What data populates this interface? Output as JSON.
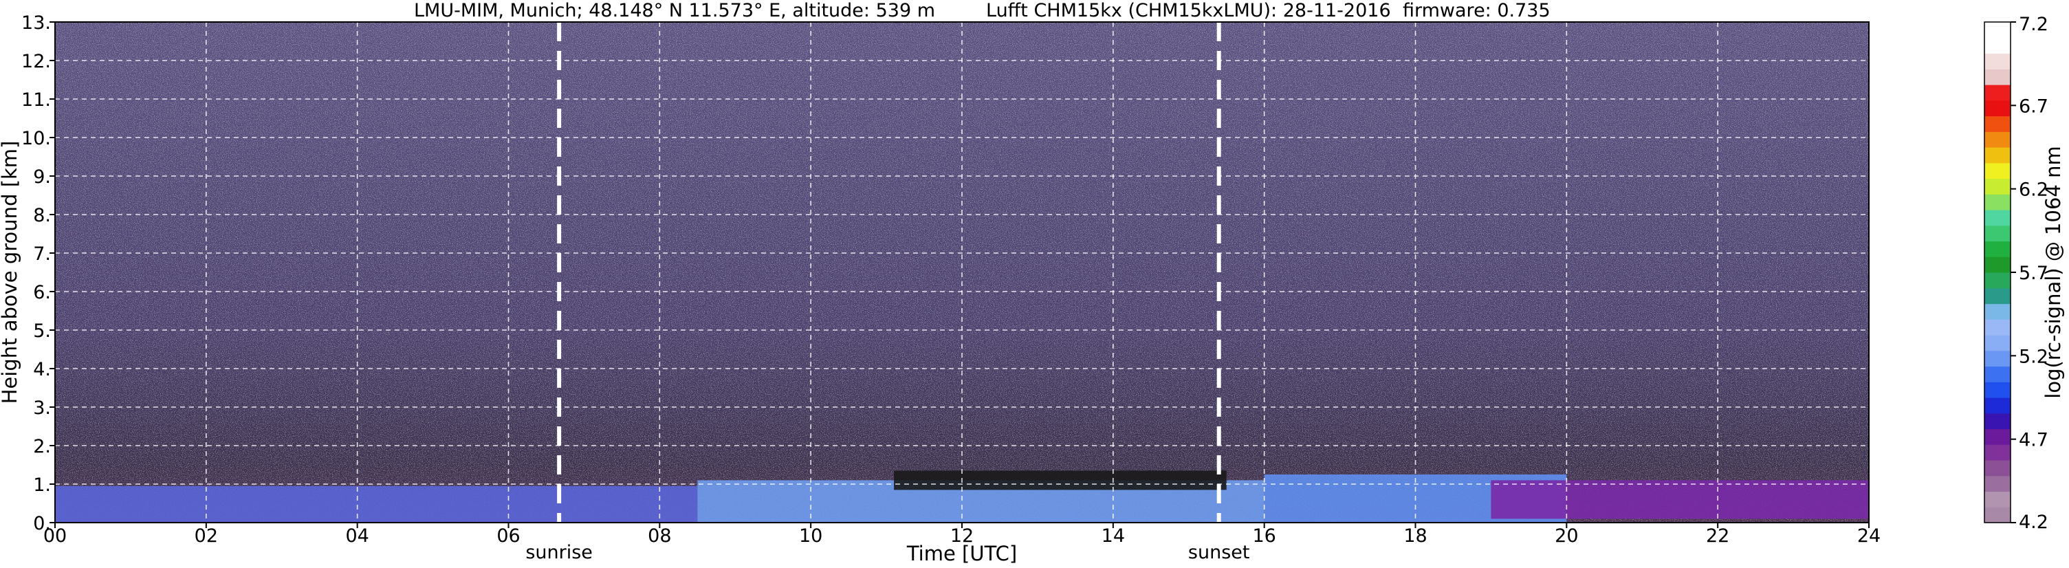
{
  "chart_data": {
    "type": "heatmap",
    "title": {
      "location": "LMU-MIM, Munich; 48.148° N 11.573° E, altitude: 539 m",
      "instrument": "Lufft CHM15kx (CHM15kxLMU): 28-11-2016",
      "firmware": "firmware: 0.735"
    },
    "xlabel": "Time [UTC]",
    "ylabel": "Height above ground [km]",
    "xlim": [
      0,
      24
    ],
    "ylim": [
      0,
      13
    ],
    "x_ticks": [
      {
        "value": 0,
        "label": "00"
      },
      {
        "value": 2,
        "label": "02"
      },
      {
        "value": 4,
        "label": "04"
      },
      {
        "value": 6,
        "label": "06"
      },
      {
        "value": 8,
        "label": "08"
      },
      {
        "value": 10,
        "label": "10"
      },
      {
        "value": 12,
        "label": "12"
      },
      {
        "value": 14,
        "label": "14"
      },
      {
        "value": 16,
        "label": "16"
      },
      {
        "value": 18,
        "label": "18"
      },
      {
        "value": 20,
        "label": "20"
      },
      {
        "value": 22,
        "label": "22"
      },
      {
        "value": 24,
        "label": "24"
      }
    ],
    "y_ticks": [
      {
        "value": 0,
        "label": "0."
      },
      {
        "value": 1,
        "label": "1."
      },
      {
        "value": 2,
        "label": "2."
      },
      {
        "value": 3,
        "label": "3."
      },
      {
        "value": 4,
        "label": "4."
      },
      {
        "value": 5,
        "label": "5."
      },
      {
        "value": 6,
        "label": "6."
      },
      {
        "value": 7,
        "label": "7."
      },
      {
        "value": 8,
        "label": "8."
      },
      {
        "value": 9,
        "label": "9."
      },
      {
        "value": 10,
        "label": "10."
      },
      {
        "value": 11,
        "label": "11."
      },
      {
        "value": 12,
        "label": "12."
      },
      {
        "value": 13,
        "label": "13."
      }
    ],
    "grid": true,
    "events": [
      {
        "name": "sunrise",
        "time": 6.67
      },
      {
        "name": "sunset",
        "time": 15.4
      }
    ],
    "regions": [
      {
        "name": "aerosol-layer-morning",
        "t0": 0,
        "t1": 8.5,
        "h0": 0,
        "h1": 0.95,
        "color": "#5a66d8"
      },
      {
        "name": "aerosol-layer-afternoon",
        "t0": 8.5,
        "t1": 16,
        "h0": 0,
        "h1": 1.1,
        "color": "#6f9df0"
      },
      {
        "name": "boundary-layer-evening",
        "t0": 16,
        "t1": 20,
        "h0": 0,
        "h1": 1.25,
        "color": "#5f8ff0"
      },
      {
        "name": "residual-layer-night",
        "t0": 19,
        "t1": 24,
        "h0": 0.1,
        "h1": 1.1,
        "color": "#7a2aa8"
      },
      {
        "name": "cloud-layer-midday",
        "t0": 11.1,
        "t1": 15.5,
        "h0": 0.85,
        "h1": 1.35,
        "color": "#1a1a1a"
      }
    ],
    "colorbar": {
      "label": "log(rc-signal) @ 1064 nm",
      "min": 4.2,
      "max": 7.2,
      "ticks": [
        {
          "value": 4.2,
          "label": "4.2"
        },
        {
          "value": 4.7,
          "label": "4.7"
        },
        {
          "value": 5.2,
          "label": "5.2"
        },
        {
          "value": 5.7,
          "label": "5.7"
        },
        {
          "value": 6.2,
          "label": "6.2"
        },
        {
          "value": 6.7,
          "label": "6.7"
        },
        {
          "value": 7.2,
          "label": "7.2"
        }
      ],
      "colors": [
        "#a88aa8",
        "#b094b0",
        "#9a6e9e",
        "#8c5096",
        "#80329a",
        "#6a1a9a",
        "#3a14b0",
        "#1c2ad8",
        "#2050ee",
        "#3c72f2",
        "#6a96f4",
        "#8aaef6",
        "#9ab8f6",
        "#7ab8e8",
        "#2a9a8a",
        "#28a85a",
        "#1e9a2a",
        "#20b040",
        "#3cc870",
        "#50d6a0",
        "#8ae060",
        "#c8ec30",
        "#f0f020",
        "#f0c010",
        "#f08a10",
        "#f05010",
        "#e81010",
        "#ee1e1e",
        "#e8c8c8",
        "#f2dcdc",
        "#ffffff",
        "#ffffff"
      ]
    }
  }
}
